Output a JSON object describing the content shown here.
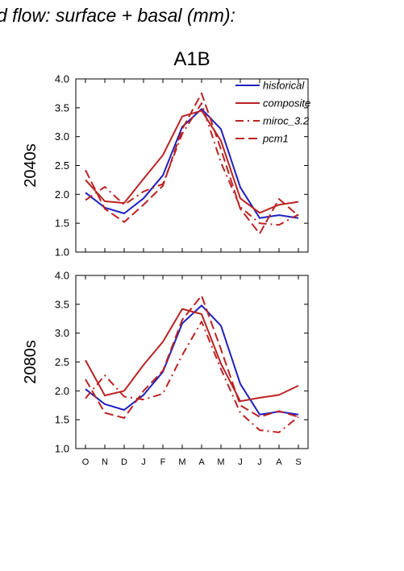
{
  "title": "d flow: surface + basal (mm):",
  "panel_title": "A1B",
  "colors": {
    "historical": "#1f1fbf",
    "scenario": "#bb2222"
  },
  "chart_data": [
    {
      "type": "line",
      "row_label": "2040s",
      "categories": [
        "O",
        "N",
        "D",
        "J",
        "F",
        "M",
        "A",
        "M",
        "J",
        "J",
        "A",
        "S"
      ],
      "ylim": [
        1.0,
        4.0
      ],
      "yticks": [
        "1.0",
        "1.5",
        "2.0",
        "2.5",
        "3.0",
        "3.5",
        "4.0"
      ],
      "legend_position": "top-right",
      "series": [
        {
          "name": "historical",
          "style": "solid",
          "color": "#1f1fbf",
          "values": [
            2.03,
            1.77,
            1.67,
            1.93,
            2.33,
            3.17,
            3.48,
            3.13,
            2.12,
            1.59,
            1.64,
            1.59
          ]
        },
        {
          "name": "composite",
          "style": "solid",
          "color": "#bb2222",
          "values": [
            2.25,
            1.88,
            1.85,
            2.27,
            2.68,
            3.35,
            3.45,
            2.93,
            1.93,
            1.68,
            1.82,
            1.87
          ]
        },
        {
          "name": "miroc_3.2",
          "style": "dashdot",
          "color": "#bb2222",
          "values": [
            1.9,
            2.13,
            1.82,
            2.05,
            2.18,
            3.05,
            3.58,
            2.55,
            1.78,
            1.5,
            1.47,
            1.65
          ]
        },
        {
          "name": "pcm1",
          "style": "dashed",
          "color": "#bb2222",
          "values": [
            2.42,
            1.75,
            1.52,
            1.82,
            2.15,
            3.13,
            3.75,
            2.78,
            1.75,
            1.32,
            1.92,
            1.63
          ]
        }
      ]
    },
    {
      "type": "line",
      "row_label": "2080s",
      "categories": [
        "O",
        "N",
        "D",
        "J",
        "F",
        "M",
        "A",
        "M",
        "J",
        "J",
        "A",
        "S"
      ],
      "ylim": [
        1.0,
        4.0
      ],
      "yticks": [
        "1.0",
        "1.5",
        "2.0",
        "2.5",
        "3.0",
        "3.5",
        "4.0"
      ],
      "series": [
        {
          "name": "historical",
          "style": "solid",
          "color": "#1f1fbf",
          "values": [
            2.03,
            1.77,
            1.67,
            1.93,
            2.33,
            3.17,
            3.48,
            3.13,
            2.12,
            1.59,
            1.64,
            1.59
          ]
        },
        {
          "name": "composite",
          "style": "solid",
          "color": "#bb2222",
          "values": [
            2.53,
            1.92,
            2.0,
            2.45,
            2.85,
            3.42,
            3.33,
            2.47,
            1.82,
            1.88,
            1.93,
            2.09
          ]
        },
        {
          "name": "miroc_3.2",
          "style": "dashdot",
          "color": "#bb2222",
          "values": [
            1.87,
            2.27,
            1.9,
            1.85,
            1.95,
            2.62,
            3.2,
            2.38,
            1.62,
            1.32,
            1.28,
            1.55
          ]
        },
        {
          "name": "pcm1",
          "style": "dashed",
          "color": "#bb2222",
          "values": [
            2.2,
            1.62,
            1.53,
            2.0,
            2.35,
            3.23,
            3.65,
            2.72,
            1.75,
            1.55,
            1.65,
            1.55
          ]
        }
      ]
    }
  ]
}
